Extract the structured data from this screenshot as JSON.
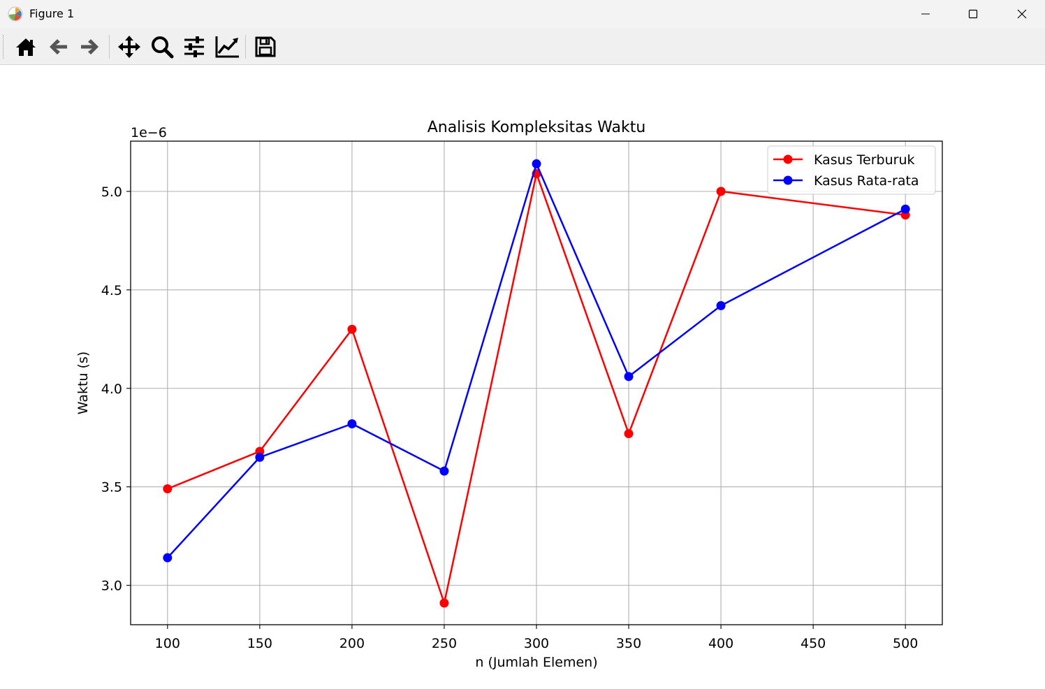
{
  "window": {
    "title": "Figure 1"
  },
  "toolbar": {
    "buttons": [
      "home-icon",
      "back-arrow-icon",
      "forward-arrow-icon",
      "pan-icon",
      "zoom-icon",
      "configure-subplots-icon",
      "edit-axis-icon",
      "save-icon"
    ]
  },
  "chart_data": {
    "type": "line",
    "title": "Analisis Kompleksitas Waktu",
    "xlabel": "n (Jumlah Elemen)",
    "ylabel": "Waktu (s)",
    "y_offset_label": "1e−6",
    "xlim": [
      80,
      520
    ],
    "ylim": [
      2.8,
      5.255
    ],
    "xticks": [
      100,
      150,
      200,
      250,
      300,
      350,
      400,
      450,
      500
    ],
    "xtick_labels": [
      "100",
      "150",
      "200",
      "250",
      "300",
      "350",
      "400",
      "450",
      "500"
    ],
    "yticks": [
      3.0,
      3.5,
      4.0,
      4.5,
      5.0
    ],
    "ytick_labels": [
      "3.0",
      "3.5",
      "4.0",
      "4.5",
      "5.0"
    ],
    "grid": true,
    "legend_position": "top-right",
    "x": [
      100,
      150,
      200,
      250,
      300,
      350,
      400,
      500
    ],
    "series": [
      {
        "name": "Kasus Terburuk",
        "color": "#ff0000",
        "values": [
          3.49,
          3.68,
          4.3,
          2.91,
          5.09,
          3.77,
          5.0,
          4.88
        ]
      },
      {
        "name": "Kasus Rata-rata",
        "color": "#0000ff",
        "values": [
          3.14,
          3.65,
          3.82,
          3.58,
          5.14,
          4.06,
          4.42,
          4.91
        ]
      }
    ]
  }
}
